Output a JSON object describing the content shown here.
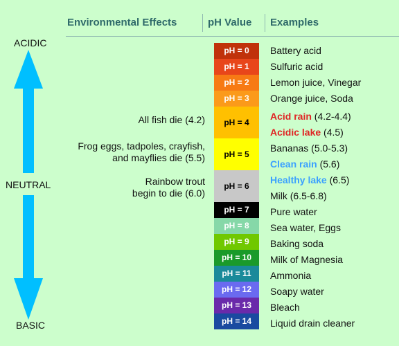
{
  "headers": {
    "effects": "Environmental Effects",
    "ph": "pH Value",
    "examples": "Examples"
  },
  "scale_labels": {
    "acidic": "ACIDIC",
    "neutral": "NEUTRAL",
    "basic": "BASIC"
  },
  "effects": [
    {
      "text": "All fish die (4.2)"
    },
    {
      "text_line1": "Frog eggs, tadpoles, crayfish,",
      "text_line2": "and mayflies die (5.5)"
    },
    {
      "text_line1": "Rainbow trout",
      "text_line2": "begin to die (6.0)"
    }
  ],
  "ph_levels": [
    {
      "label": "pH = 0",
      "color": "#c0320a",
      "text_color": "#ffffff"
    },
    {
      "label": "pH = 1",
      "color": "#e8461a",
      "text_color": "#ffffff"
    },
    {
      "label": "pH = 2",
      "color": "#f77a14",
      "text_color": "#ffffff"
    },
    {
      "label": "pH = 3",
      "color": "#fb9a1a",
      "text_color": "#ffffff"
    },
    {
      "label": "pH = 4",
      "color": "#ffc000",
      "text_color": "#000000"
    },
    {
      "label": "pH = 5",
      "color": "#ffff00",
      "text_color": "#000000"
    },
    {
      "label": "pH = 6",
      "color": "#c8c8c8",
      "text_color": "#000000"
    },
    {
      "label": "pH = 7",
      "color": "#000000",
      "text_color": "#ffffff"
    },
    {
      "label": "pH = 8",
      "color": "#86d8a8",
      "text_color": "#ffffff"
    },
    {
      "label": "pH = 9",
      "color": "#70c800",
      "text_color": "#ffffff"
    },
    {
      "label": "pH = 10",
      "color": "#1a9a2a",
      "text_color": "#ffffff"
    },
    {
      "label": "pH = 11",
      "color": "#1a8a9a",
      "text_color": "#ffffff"
    },
    {
      "label": "pH = 12",
      "color": "#6a6af0",
      "text_color": "#ffffff"
    },
    {
      "label": "pH = 13",
      "color": "#6a2aaa",
      "text_color": "#ffffff"
    },
    {
      "label": "pH = 14",
      "color": "#1a4aa0",
      "text_color": "#ffffff"
    }
  ],
  "examples": {
    "ph0": "Battery acid",
    "ph1": "Sulfuric acid",
    "ph2": "Lemon juice, Vinegar",
    "ph3": "Orange juice, Soda",
    "acid_rain_label": "Acid rain",
    "acid_rain_value": "(4.2-4.4)",
    "acidic_lake_label": "Acidic lake",
    "acidic_lake_value": "(4.5)",
    "bananas": "Bananas (5.0-5.3)",
    "clean_rain_label": "Clean rain",
    "clean_rain_value": "(5.6)",
    "healthy_lake_label": "Healthy lake",
    "healthy_lake_value": "(6.5)",
    "milk": "Milk (6.5-6.8)",
    "ph7": "Pure water",
    "ph8": "Sea water, Eggs",
    "ph9": "Baking soda",
    "ph10": "Milk of Magnesia",
    "ph11": "Ammonia",
    "ph12": "Soapy water",
    "ph13": "Bleach",
    "ph14": "Liquid drain cleaner"
  },
  "arrow_color": "#00bfff"
}
